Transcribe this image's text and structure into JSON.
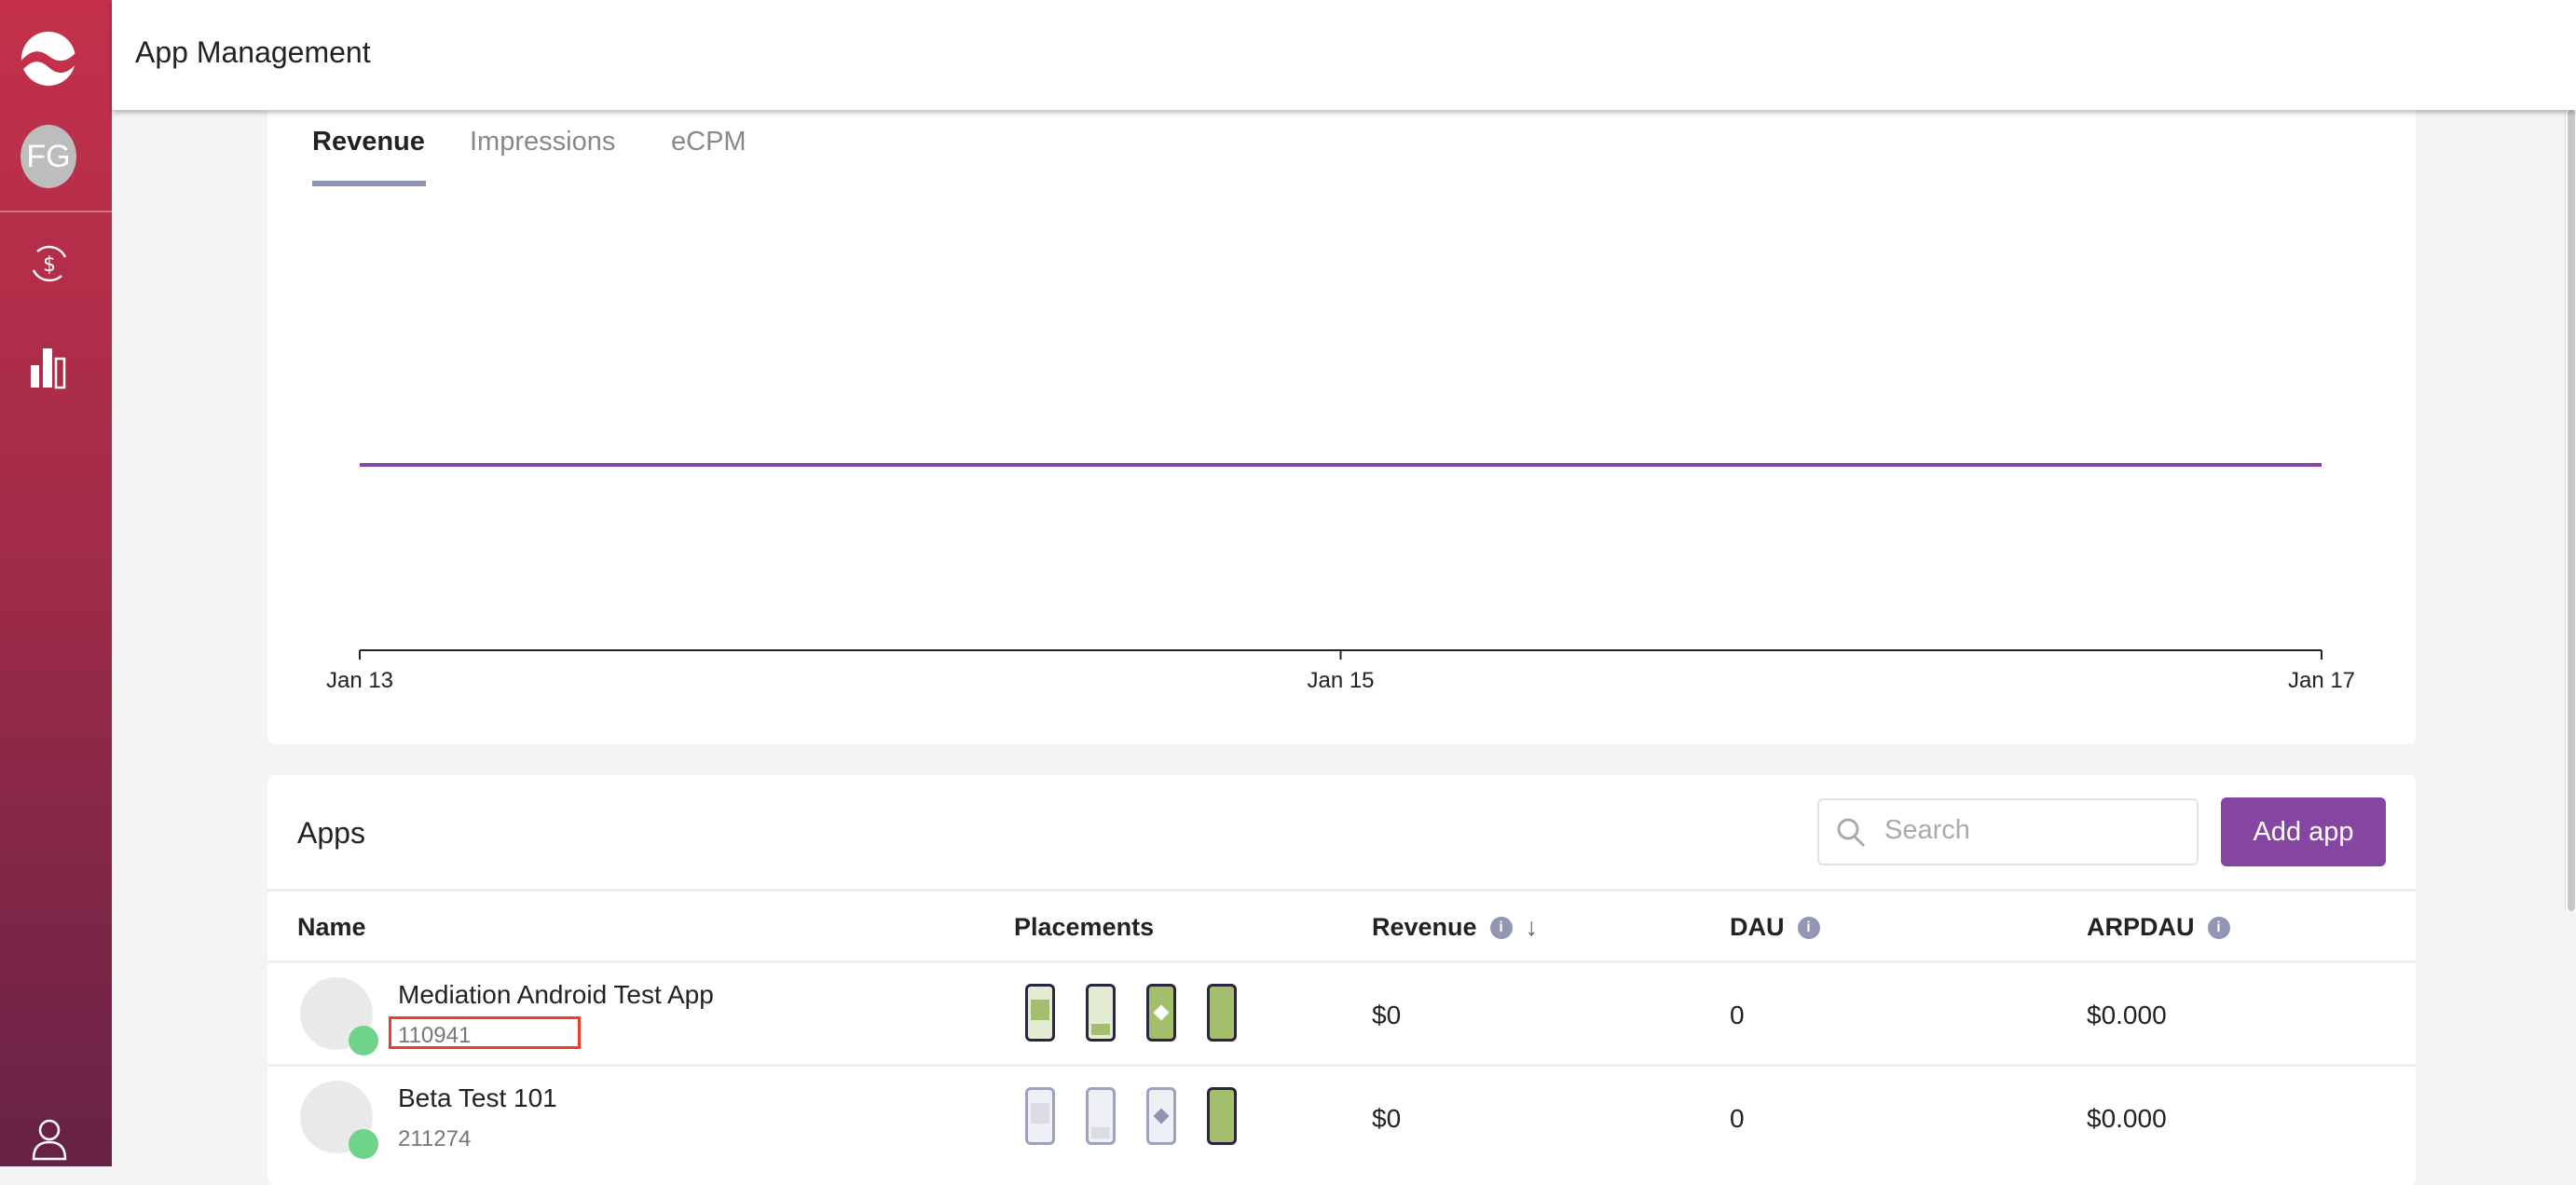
{
  "header": {
    "title": "App Management"
  },
  "sidebar": {
    "avatar_initials": "FG",
    "icons": [
      "logo-icon",
      "dollar-sync-icon",
      "bar-chart-icon",
      "user-icon"
    ]
  },
  "chart": {
    "tabs": [
      {
        "label": "Revenue",
        "active": true
      },
      {
        "label": "Impressions",
        "active": false
      },
      {
        "label": "eCPM",
        "active": false
      }
    ],
    "line_color": "#8446a0"
  },
  "chart_data": {
    "type": "line",
    "x": [
      "Jan 13",
      "Jan 15",
      "Jan 17"
    ],
    "x_ticks": [
      "Jan 13",
      "Jan 15",
      "Jan 17"
    ],
    "series": [
      {
        "values": [
          0,
          0,
          0
        ]
      }
    ],
    "grid": false
  },
  "apps": {
    "title": "Apps",
    "search_placeholder": "Search",
    "add_label": "Add app",
    "columns": [
      "Name",
      "Placements",
      "Revenue",
      "DAU",
      "ARPDAU"
    ],
    "rows": [
      {
        "name": "Mediation Android Test App",
        "id": "110941",
        "platform": "android",
        "revenue": "$0",
        "dau": "0",
        "arpdau": "$0.000",
        "placements_active": [
          true,
          true,
          true,
          true
        ]
      },
      {
        "name": "Beta Test 101",
        "id": "211274",
        "platform": "android",
        "revenue": "$0",
        "dau": "0",
        "arpdau": "$0.000",
        "placements_active": [
          false,
          false,
          false,
          true
        ]
      }
    ]
  },
  "colors": {
    "accent": "#8446a0",
    "sidebar_top": "#c4304a",
    "sidebar_bottom": "#662246",
    "placement_active": "#a3bf6d",
    "highlight": "#e8402a"
  }
}
